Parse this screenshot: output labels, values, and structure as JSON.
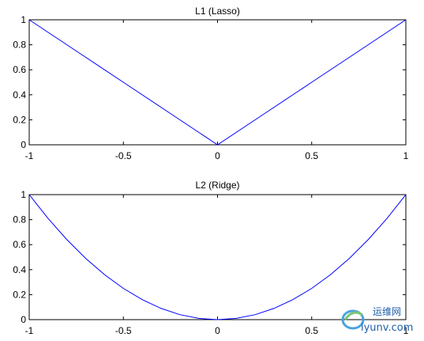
{
  "chart_data": [
    {
      "type": "line",
      "title": "L1 (Lasso)",
      "xlabel": "",
      "ylabel": "",
      "xlim": [
        -1,
        1
      ],
      "ylim": [
        0,
        1
      ],
      "xticks": [
        -1,
        -0.5,
        0,
        0.5,
        1
      ],
      "xtick_labels": [
        "-1",
        "-0.5",
        "0",
        "0.5",
        "1"
      ],
      "yticks": [
        0,
        0.2,
        0.4,
        0.6,
        0.8,
        1
      ],
      "ytick_labels": [
        "0",
        "0.2",
        "0.4",
        "0.6",
        "0.8",
        "1"
      ],
      "grid": false,
      "color": "#0000ff",
      "series": [
        {
          "x": [
            -1,
            -0.75,
            -0.5,
            -0.25,
            0,
            0.25,
            0.5,
            0.75,
            1
          ],
          "y": [
            1,
            0.75,
            0.5,
            0.25,
            0,
            0.25,
            0.5,
            0.75,
            1
          ]
        }
      ]
    },
    {
      "type": "line",
      "title": "L2 (Ridge)",
      "xlabel": "",
      "ylabel": "",
      "xlim": [
        -1,
        1
      ],
      "ylim": [
        0,
        1
      ],
      "xticks": [
        -1,
        -0.5,
        0,
        0.5,
        1
      ],
      "xtick_labels": [
        "-1",
        "-0.5",
        "0",
        "0.5",
        "1"
      ],
      "yticks": [
        0,
        0.2,
        0.4,
        0.6,
        0.8,
        1
      ],
      "ytick_labels": [
        "0",
        "0.2",
        "0.4",
        "0.6",
        "0.8",
        "1"
      ],
      "grid": false,
      "color": "#0000ff",
      "series": [
        {
          "x": [
            -1,
            -0.9,
            -0.8,
            -0.7,
            -0.6,
            -0.5,
            -0.4,
            -0.3,
            -0.2,
            -0.1,
            0,
            0.1,
            0.2,
            0.3,
            0.4,
            0.5,
            0.6,
            0.7,
            0.8,
            0.9,
            1
          ],
          "y": [
            1,
            0.81,
            0.64,
            0.49,
            0.36,
            0.25,
            0.16,
            0.09,
            0.04,
            0.01,
            0,
            0.01,
            0.04,
            0.09,
            0.16,
            0.25,
            0.36,
            0.49,
            0.64,
            0.81,
            1
          ]
        }
      ]
    }
  ],
  "watermark": {
    "site_cn": "运维网",
    "site_url": "iyunv.com",
    "color": "#1f5fa8"
  }
}
